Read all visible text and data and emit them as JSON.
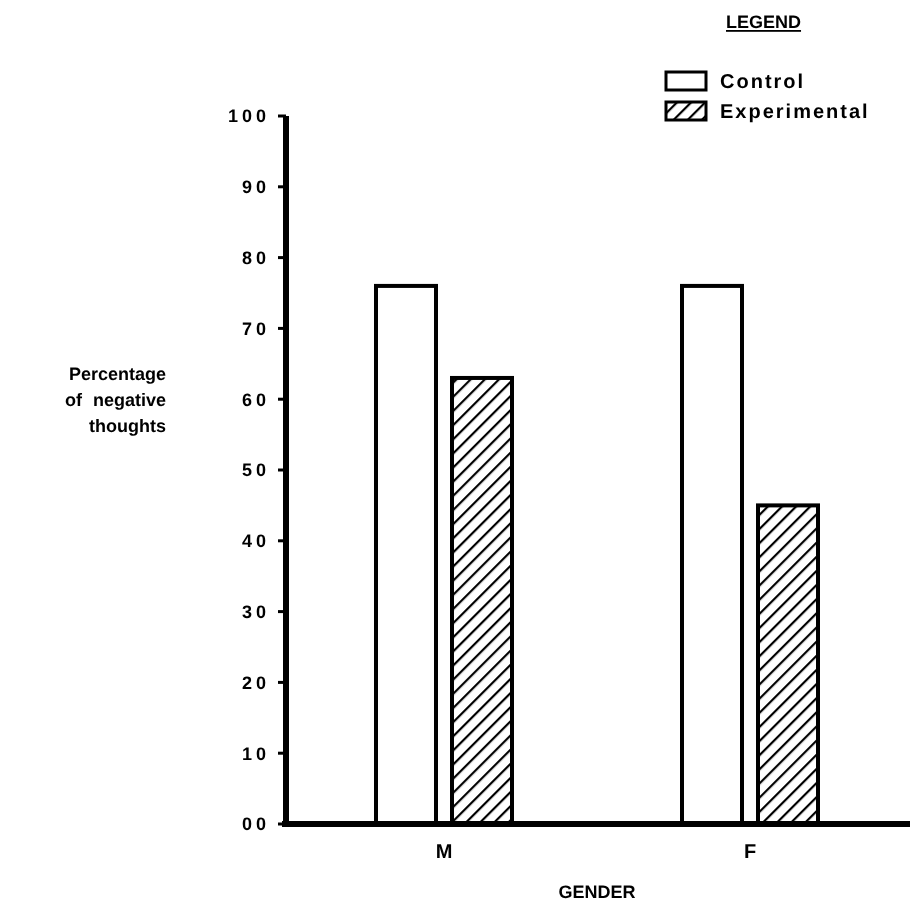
{
  "chart_data": {
    "type": "bar",
    "xlabel": "GENDER",
    "ylabel": "Percentage\nof negative\nthoughts",
    "legend_title": "LEGEND",
    "categories": [
      "M",
      "F"
    ],
    "series": [
      {
        "name": "Control",
        "color": "#ffffff",
        "values": [
          76,
          76
        ]
      },
      {
        "name": "Experimental",
        "color": "#000000",
        "values": [
          63,
          45
        ]
      }
    ],
    "ylim": [
      0,
      100
    ],
    "yticks": [
      {
        "value": 0,
        "label": "00"
      },
      10,
      20,
      30,
      40,
      50,
      60,
      70,
      80,
      90,
      100
    ],
    "grid": false,
    "legend": "top right"
  }
}
